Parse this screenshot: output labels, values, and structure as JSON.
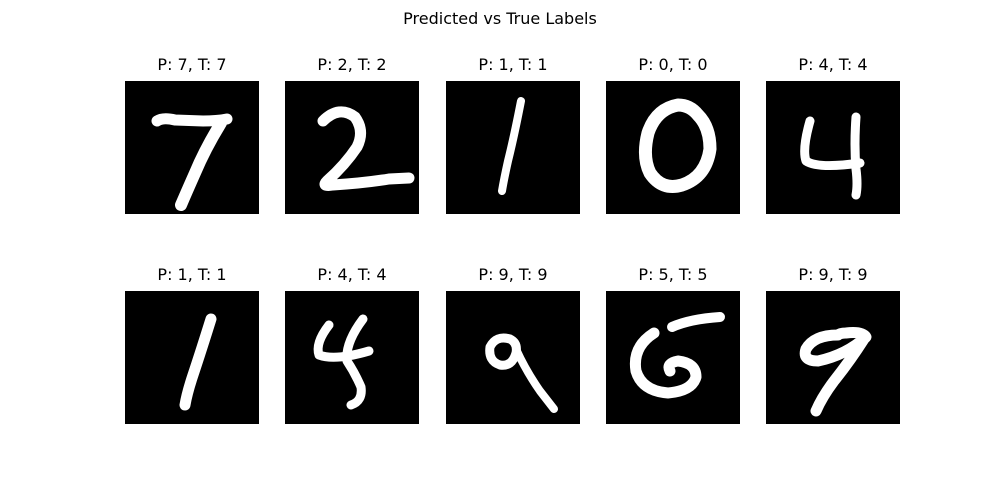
{
  "title": "Predicted vs True Labels",
  "panels": [
    {
      "label": "P: 7, T: 7",
      "digit": "seven"
    },
    {
      "label": "P: 2, T: 2",
      "digit": "two"
    },
    {
      "label": "P: 1, T: 1",
      "digit": "one"
    },
    {
      "label": "P: 0, T: 0",
      "digit": "zero"
    },
    {
      "label": "P: 4, T: 4",
      "digit": "four"
    },
    {
      "label": "P: 1, T: 1",
      "digit": "one"
    },
    {
      "label": "P: 4, T: 4",
      "digit": "four"
    },
    {
      "label": "P: 9, T: 9",
      "digit": "nine"
    },
    {
      "label": "P: 5, T: 5",
      "digit": "five"
    },
    {
      "label": "P: 9, T: 9",
      "digit": "nine"
    }
  ],
  "colors": {
    "image_background": "#000000",
    "stroke": "#ffffff"
  }
}
